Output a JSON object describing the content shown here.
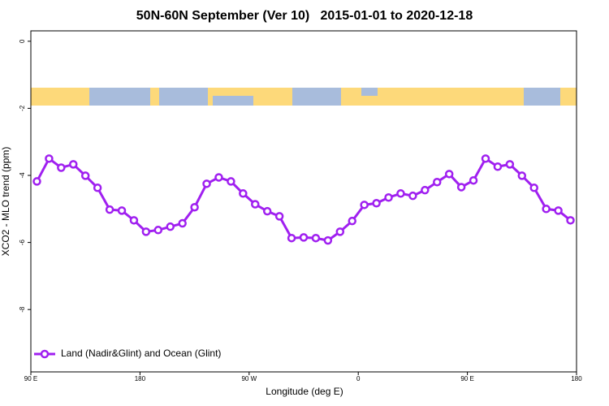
{
  "chart_data": {
    "type": "line",
    "title": "50N-60N September (Ver 10)   2015-01-01 to 2020-12-18",
    "x_label": "Longitude (deg E)",
    "y_label": "XCO2 - MLO trend (ppm)",
    "x": [
      95,
      105,
      115,
      125,
      135,
      145,
      155,
      165,
      175,
      185,
      195,
      205,
      215,
      225,
      235,
      245,
      255,
      265,
      275,
      285,
      295,
      305,
      315,
      325,
      335,
      345,
      355,
      365,
      375,
      385,
      395,
      405,
      415,
      425,
      435,
      445,
      455,
      465,
      475,
      485,
      495,
      505,
      515,
      525,
      535
    ],
    "series": [
      {
        "name": "Land (Nadir&Glint) and Ocean (Glint)",
        "color": "#a020f0",
        "values": [
          -4.18,
          -3.5,
          -3.77,
          -3.67,
          -4.01,
          -4.37,
          -5.02,
          -5.05,
          -5.34,
          -5.68,
          -5.63,
          -5.53,
          -5.43,
          -4.95,
          -4.25,
          -4.06,
          -4.18,
          -4.54,
          -4.86,
          -5.07,
          -5.22,
          -5.87,
          -5.85,
          -5.87,
          -5.94,
          -5.68,
          -5.36,
          -4.88,
          -4.83,
          -4.66,
          -4.54,
          -4.61,
          -4.44,
          -4.2,
          -3.96,
          -4.35,
          -4.15,
          -3.5,
          -3.74,
          -3.67,
          -4.01,
          -4.37,
          -5.0,
          -5.05,
          -5.34
        ]
      }
    ],
    "xlim": [
      90,
      540
    ],
    "xticks": [
      {
        "value": 90,
        "label": "90 E"
      },
      180,
      {
        "value": 270,
        "label": "90 W"
      },
      {
        "value": 360,
        "label": "0"
      },
      {
        "value": 450,
        "label": "90 E"
      },
      {
        "value": 540,
        "label": "180"
      }
    ],
    "ylim": [
      -9.86,
      0.31
    ],
    "yticks": [
      0,
      -2,
      -4,
      -6,
      -8
    ],
    "legend": "bottomleft"
  }
}
